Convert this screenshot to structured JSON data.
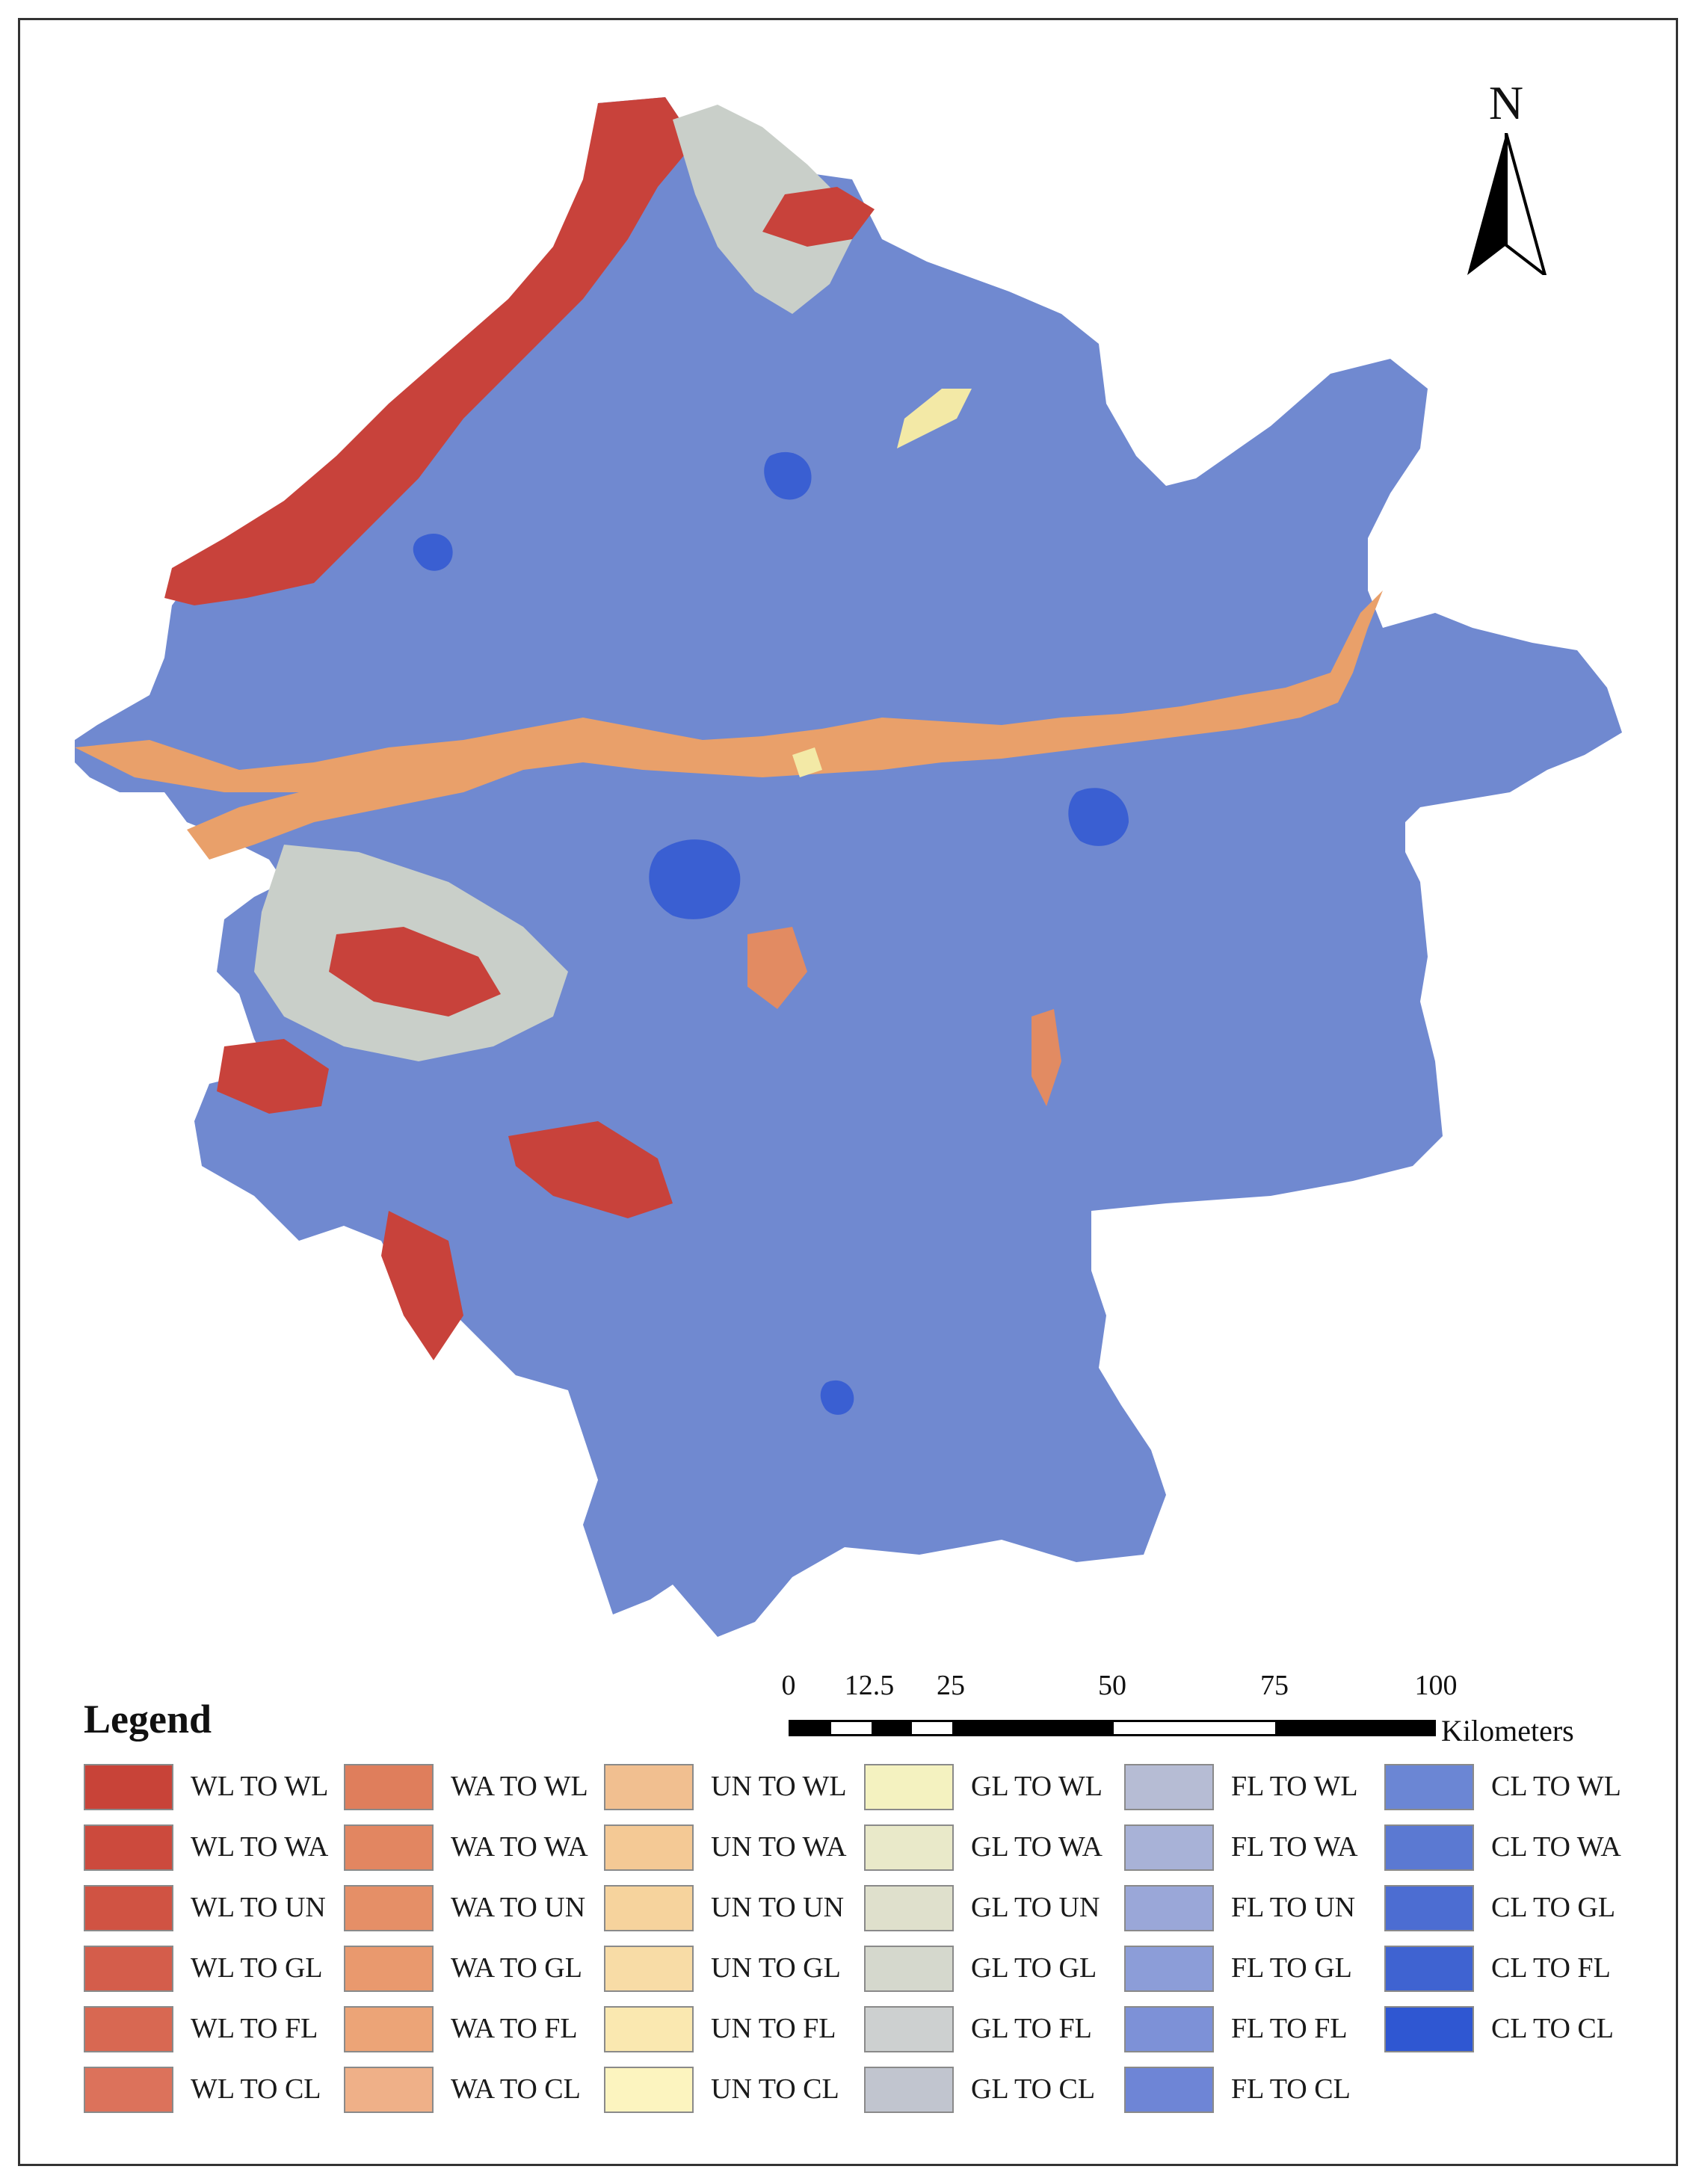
{
  "map": {
    "region_fill": "#7089d0",
    "river_fill": "#e9a06a",
    "colors": {
      "red": "#c8423b",
      "gray": "#c9cfc9",
      "dark_blue": "#3a5fd2",
      "yellow": "#f3e9a6",
      "orange": "#e28b62"
    }
  },
  "north_arrow": {
    "label": "N"
  },
  "scale_bar": {
    "ticks": [
      "0",
      "12.5",
      "25",
      "50",
      "75",
      "100"
    ],
    "unit": "Kilometers"
  },
  "legend": {
    "title": "Legend",
    "columns": [
      [
        {
          "label": "WL TO WL",
          "color": "#c84338"
        },
        {
          "label": "WL TO WA",
          "color": "#cc4a3d"
        },
        {
          "label": "WL TO UN",
          "color": "#d05343"
        },
        {
          "label": "WL TO GL",
          "color": "#d45d4b"
        },
        {
          "label": "WL TO FL",
          "color": "#d86852"
        },
        {
          "label": "WL TO CL",
          "color": "#dc725b"
        }
      ],
      [
        {
          "label": "WA TO WL",
          "color": "#df7e5c"
        },
        {
          "label": "WA TO WA",
          "color": "#e28661"
        },
        {
          "label": "WA TO UN",
          "color": "#e58f67"
        },
        {
          "label": "WA TO GL",
          "color": "#e9996e"
        },
        {
          "label": "WA TO FL",
          "color": "#eca477"
        },
        {
          "label": "WA TO CL",
          "color": "#efb088"
        }
      ],
      [
        {
          "label": "UN TO WL",
          "color": "#f1bf90"
        },
        {
          "label": "UN TO WA",
          "color": "#f4c995"
        },
        {
          "label": "UN TO UN",
          "color": "#f6d39d"
        },
        {
          "label": "UN TO GL",
          "color": "#f8dca6"
        },
        {
          "label": "UN TO FL",
          "color": "#fae8b0"
        },
        {
          "label": "UN TO CL",
          "color": "#fcf4bf"
        }
      ],
      [
        {
          "label": "GL TO WL",
          "color": "#f4f2c0"
        },
        {
          "label": "GL TO WA",
          "color": "#e9e9c9"
        },
        {
          "label": "GL TO UN",
          "color": "#dfe0cc"
        },
        {
          "label": "GL TO GL",
          "color": "#d5d8cd"
        },
        {
          "label": "GL TO FL",
          "color": "#cdd0d0"
        },
        {
          "label": "GL TO CL",
          "color": "#c1c5cf"
        }
      ],
      [
        {
          "label": "FL TO WL",
          "color": "#b6bcd4"
        },
        {
          "label": "FL TO WA",
          "color": "#a8b2d7"
        },
        {
          "label": "FL TO UN",
          "color": "#9aa7d8"
        },
        {
          "label": "FL TO GL",
          "color": "#8c9dd8"
        },
        {
          "label": "FL TO FL",
          "color": "#7d91d7"
        },
        {
          "label": "FL TO CL",
          "color": "#6e85d6"
        }
      ],
      [
        {
          "label": "CL TO WL",
          "color": "#6b86d4"
        },
        {
          "label": "CL TO WA",
          "color": "#5b79d2"
        },
        {
          "label": "CL TO GL",
          "color": "#4c6dd2"
        },
        {
          "label": "CL TO FL",
          "color": "#3f63d1"
        },
        {
          "label": "CL TO CL",
          "color": "#2f57d2"
        }
      ]
    ]
  }
}
